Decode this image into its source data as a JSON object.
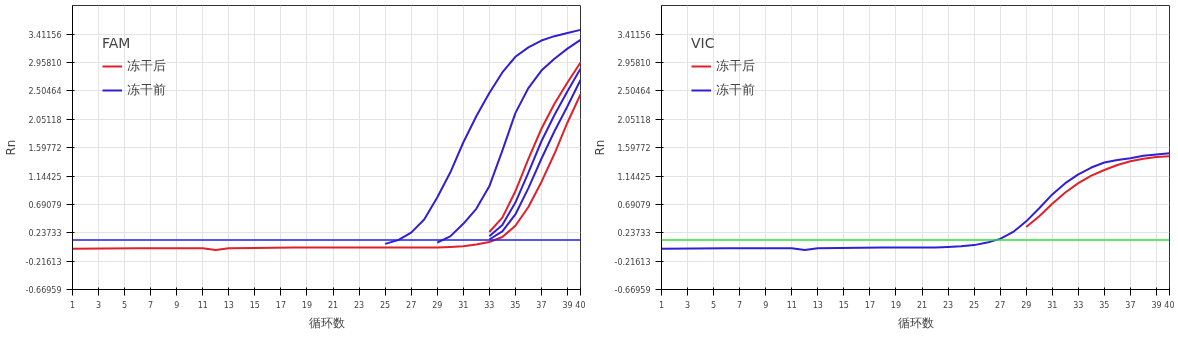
{
  "chart_data": [
    {
      "type": "line",
      "legend_title": "FAM",
      "xlabel": "循环数",
      "ylabel": "Rn",
      "legend": "top left",
      "grid": true,
      "line_style": "solid",
      "marker": "none",
      "x": [
        1,
        6,
        11,
        12,
        13,
        18,
        22,
        23,
        24,
        25,
        26,
        27,
        28,
        29,
        30,
        31,
        32,
        33,
        34,
        35,
        36,
        37,
        38,
        39,
        40
      ],
      "xlim": [
        1,
        40
      ],
      "xticks": [
        1,
        3,
        5,
        7,
        9,
        11,
        13,
        15,
        17,
        19,
        21,
        23,
        25,
        27,
        29,
        31,
        33,
        35,
        37,
        39,
        40
      ],
      "ylim": [
        -0.66959,
        3.87
      ],
      "yticks": [
        {
          "value": -0.66959,
          "label": "-0.66959"
        },
        {
          "value": -0.21613,
          "label": "-0.21613"
        },
        {
          "value": 0.23733,
          "label": "0.23733"
        },
        {
          "value": 0.69079,
          "label": "0.69079"
        },
        {
          "value": 1.14425,
          "label": "1.14425"
        },
        {
          "value": 1.59772,
          "label": "1.59772"
        },
        {
          "value": 2.05118,
          "label": "2.05118"
        },
        {
          "value": 2.50464,
          "label": "2.50464"
        },
        {
          "value": 2.9581,
          "label": "2.95810"
        },
        {
          "value": 3.41156,
          "label": "3.41156"
        }
      ],
      "ref_lines": [
        {
          "axis": "y",
          "value": 0.12,
          "color": "#1f1fe6"
        }
      ],
      "series": [
        {
          "color": "#3020d0",
          "values": [
            null,
            null,
            null,
            null,
            null,
            null,
            null,
            null,
            null,
            0.06,
            0.12,
            0.24,
            0.45,
            0.8,
            1.2,
            1.68,
            2.1,
            2.47,
            2.8,
            3.05,
            3.2,
            3.31,
            3.38,
            3.43,
            3.48
          ]
        },
        {
          "color": "#3020d0",
          "values": [
            null,
            null,
            null,
            null,
            null,
            null,
            null,
            null,
            null,
            null,
            null,
            null,
            null,
            0.08,
            0.18,
            0.38,
            0.62,
            0.98,
            1.55,
            2.15,
            2.55,
            2.83,
            3.02,
            3.18,
            3.32
          ]
        },
        {
          "name": "冻干后",
          "color": "#e0202a",
          "values": [
            null,
            null,
            null,
            null,
            null,
            null,
            null,
            null,
            null,
            null,
            null,
            null,
            null,
            null,
            null,
            null,
            null,
            0.25,
            0.48,
            0.9,
            1.42,
            1.9,
            2.3,
            2.64,
            2.96
          ]
        },
        {
          "name": "冻干前",
          "color": "#3020d0",
          "values": [
            null,
            null,
            null,
            null,
            null,
            null,
            null,
            null,
            null,
            null,
            null,
            null,
            null,
            null,
            null,
            null,
            null,
            0.18,
            0.36,
            0.72,
            1.2,
            1.7,
            2.12,
            2.5,
            2.86
          ]
        },
        {
          "color": "#3020d0",
          "values": [
            null,
            null,
            null,
            null,
            null,
            null,
            null,
            null,
            null,
            null,
            null,
            null,
            null,
            null,
            null,
            null,
            null,
            0.13,
            0.26,
            0.53,
            0.95,
            1.42,
            1.86,
            2.26,
            2.68
          ]
        },
        {
          "color": "#e0202a",
          "values": [
            -0.02,
            -0.01,
            -0.01,
            -0.04,
            -0.01,
            0.0,
            0.0,
            0.0,
            0.0,
            0.0,
            0.0,
            0.0,
            0.0,
            0.0,
            0.01,
            0.02,
            0.05,
            0.09,
            0.17,
            0.35,
            0.65,
            1.05,
            1.5,
            2.0,
            2.45
          ]
        }
      ]
    },
    {
      "type": "line",
      "legend_title": "VIC",
      "xlabel": "循环数",
      "ylabel": "Rn",
      "legend": "top left",
      "grid": true,
      "line_style": "solid",
      "marker": "none",
      "x": [
        1,
        6,
        11,
        12,
        13,
        18,
        22,
        23,
        24,
        25,
        26,
        27,
        28,
        29,
        30,
        31,
        32,
        33,
        34,
        35,
        36,
        37,
        38,
        39,
        40
      ],
      "xlim": [
        1,
        40
      ],
      "xticks": [
        1,
        3,
        5,
        7,
        9,
        11,
        13,
        15,
        17,
        19,
        21,
        23,
        25,
        27,
        29,
        31,
        33,
        35,
        37,
        39,
        40
      ],
      "ylim": [
        -0.66959,
        3.87
      ],
      "yticks": [
        {
          "value": -0.66959,
          "label": "-0.66959"
        },
        {
          "value": -0.21613,
          "label": "-0.21613"
        },
        {
          "value": 0.23733,
          "label": "0.23733"
        },
        {
          "value": 0.69079,
          "label": "0.69079"
        },
        {
          "value": 1.14425,
          "label": "1.14425"
        },
        {
          "value": 1.59772,
          "label": "1.59772"
        },
        {
          "value": 2.05118,
          "label": "2.05118"
        },
        {
          "value": 2.50464,
          "label": "2.50464"
        },
        {
          "value": 2.9581,
          "label": "2.95810"
        },
        {
          "value": 3.41156,
          "label": "3.41156"
        }
      ],
      "ref_lines": [
        {
          "axis": "y",
          "value": 0.12,
          "color": "#33dd33"
        }
      ],
      "series": [
        {
          "name": "冻干后",
          "color": "#e0202a",
          "values": [
            null,
            null,
            null,
            null,
            null,
            null,
            null,
            null,
            null,
            null,
            null,
            null,
            null,
            0.33,
            0.5,
            0.7,
            0.88,
            1.03,
            1.15,
            1.24,
            1.32,
            1.38,
            1.42,
            1.45,
            1.46
          ]
        },
        {
          "name": "冻干前",
          "color": "#3020d0",
          "values": [
            -0.02,
            -0.01,
            -0.01,
            -0.04,
            -0.01,
            0.0,
            0.0,
            0.01,
            0.02,
            0.04,
            0.08,
            0.14,
            0.25,
            0.42,
            0.63,
            0.85,
            1.03,
            1.17,
            1.28,
            1.36,
            1.4,
            1.43,
            1.47,
            1.49,
            1.51
          ]
        }
      ]
    }
  ]
}
